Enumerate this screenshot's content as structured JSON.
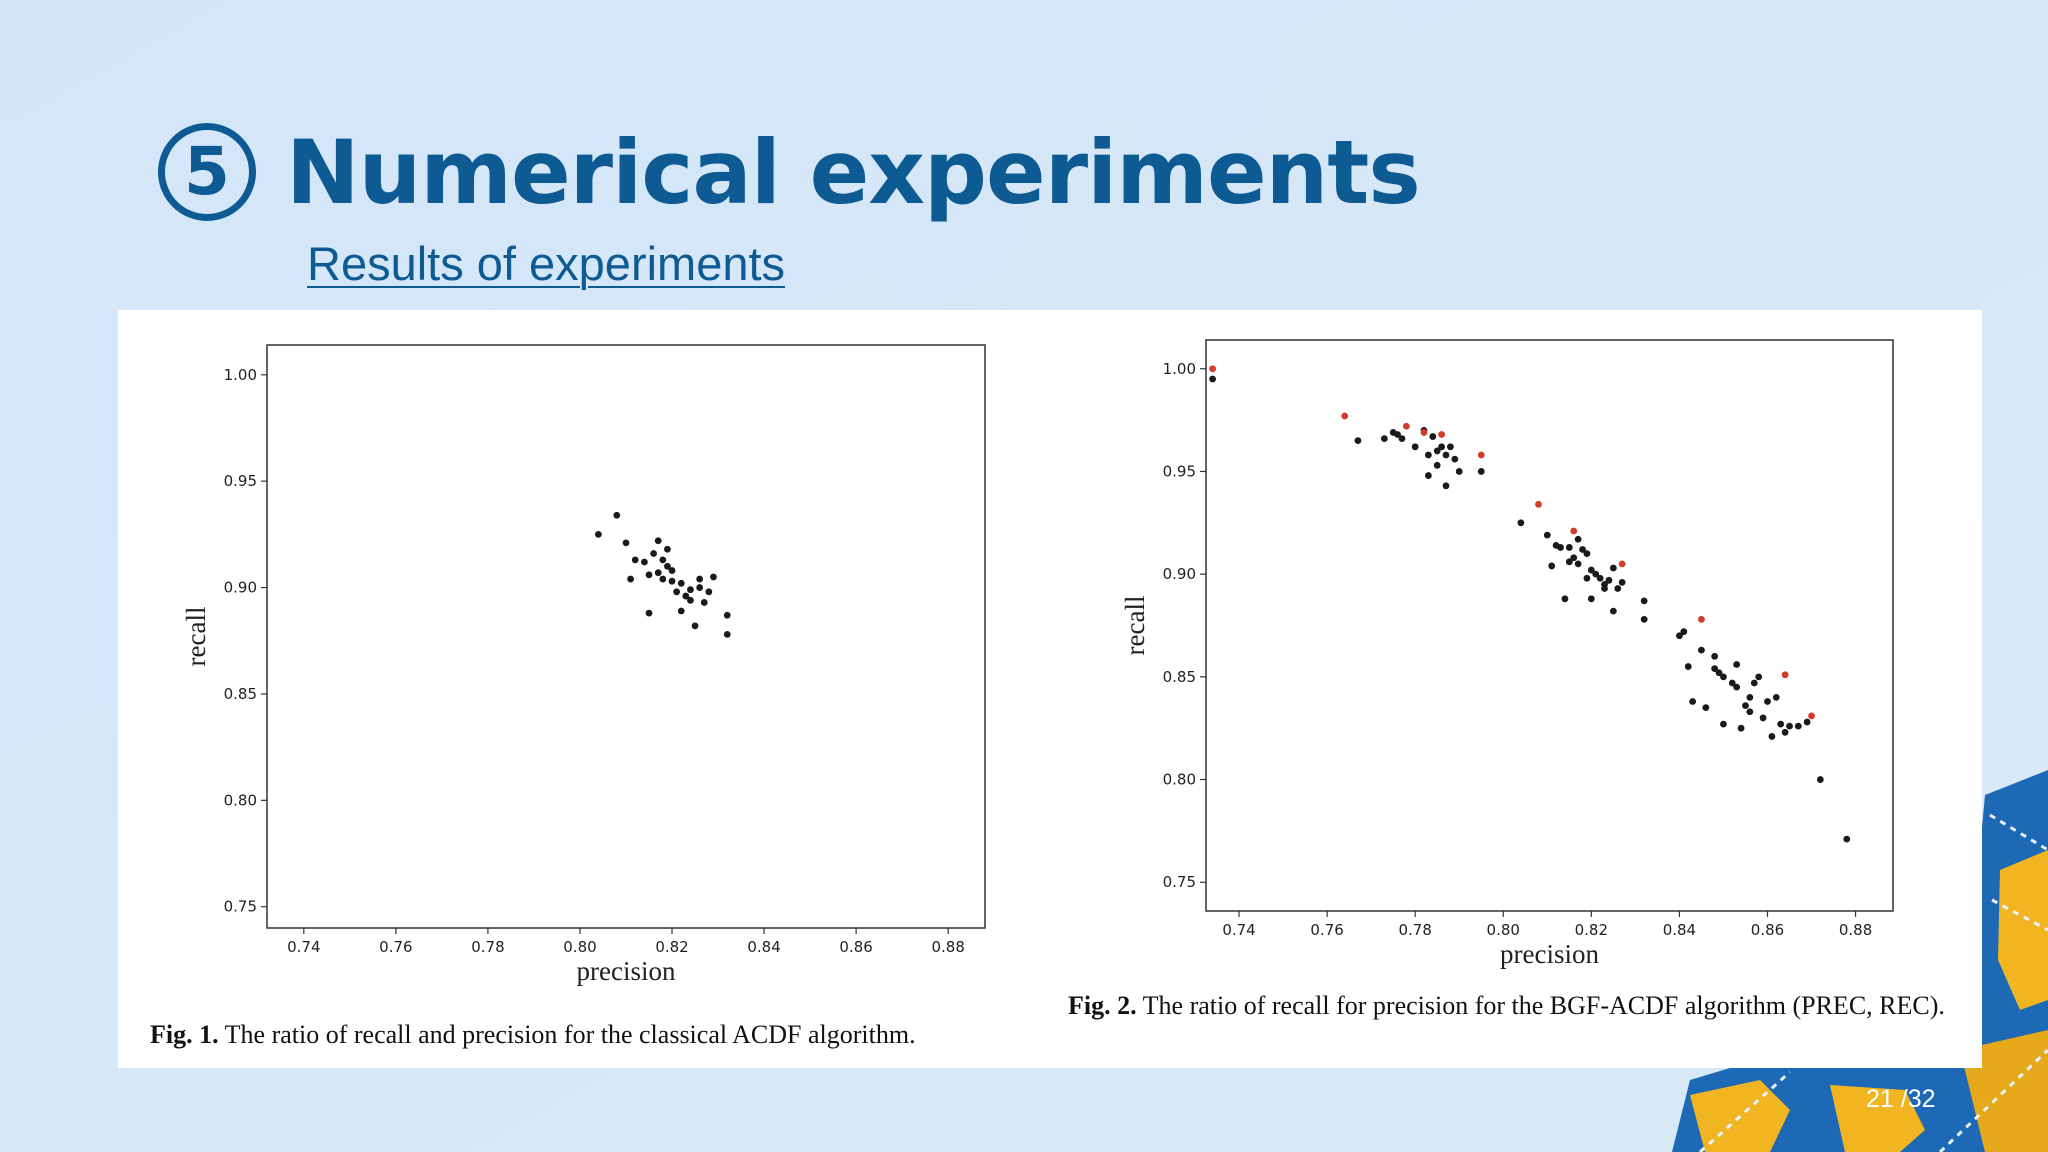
{
  "slide": {
    "section_number": "5",
    "title": "Numerical experiments",
    "subtitle": "Results of experiments",
    "page_number": "21 /32"
  },
  "colors": {
    "background": "#d6e8f8",
    "title": "#0e5b94",
    "point_black": "#1a1a1a",
    "point_red": "#d23a2a",
    "map_ocean": "#1d69b5",
    "map_land": "#f0b521"
  },
  "figures": [
    {
      "caption_label": "Fig. 1.",
      "caption_text": "The ratio of recall and precision for the classical ACDF algorithm."
    },
    {
      "caption_label": "Fig. 2.",
      "caption_text": "The ratio of recall for precision for the BGF-ACDF algorithm (PREC, REC)."
    }
  ],
  "chart_data": [
    {
      "type": "scatter",
      "title": "",
      "xlabel": "precision",
      "ylabel": "recall",
      "xlim": [
        0.732,
        0.888
      ],
      "ylim": [
        0.74,
        1.014
      ],
      "xticks": [
        "0.74",
        "0.76",
        "0.78",
        "0.80",
        "0.82",
        "0.84",
        "0.86",
        "0.88"
      ],
      "yticks": [
        "0.75",
        "0.80",
        "0.85",
        "0.90",
        "0.95",
        "1.00"
      ],
      "grid": false,
      "series": [
        {
          "color": "black",
          "points": [
            [
              0.804,
              0.925
            ],
            [
              0.808,
              0.934
            ],
            [
              0.81,
              0.921
            ],
            [
              0.811,
              0.904
            ],
            [
              0.812,
              0.913
            ],
            [
              0.814,
              0.912
            ],
            [
              0.815,
              0.906
            ],
            [
              0.815,
              0.888
            ],
            [
              0.816,
              0.916
            ],
            [
              0.817,
              0.922
            ],
            [
              0.817,
              0.907
            ],
            [
              0.818,
              0.913
            ],
            [
              0.818,
              0.904
            ],
            [
              0.819,
              0.91
            ],
            [
              0.819,
              0.918
            ],
            [
              0.82,
              0.908
            ],
            [
              0.82,
              0.903
            ],
            [
              0.821,
              0.898
            ],
            [
              0.822,
              0.889
            ],
            [
              0.822,
              0.902
            ],
            [
              0.823,
              0.896
            ],
            [
              0.824,
              0.899
            ],
            [
              0.824,
              0.894
            ],
            [
              0.825,
              0.882
            ],
            [
              0.826,
              0.9
            ],
            [
              0.827,
              0.893
            ],
            [
              0.826,
              0.904
            ],
            [
              0.828,
              0.898
            ],
            [
              0.829,
              0.905
            ],
            [
              0.832,
              0.887
            ],
            [
              0.832,
              0.878
            ]
          ]
        }
      ]
    },
    {
      "type": "scatter",
      "title": "",
      "xlabel": "precision",
      "ylabel": "recall",
      "xlim": [
        0.7325,
        0.8885
      ],
      "ylim": [
        0.736,
        1.014
      ],
      "xticks": [
        "0.74",
        "0.76",
        "0.78",
        "0.80",
        "0.82",
        "0.84",
        "0.86",
        "0.88"
      ],
      "yticks": [
        "0.75",
        "0.80",
        "0.85",
        "0.90",
        "0.95",
        "1.00"
      ],
      "grid": false,
      "series": [
        {
          "color": "black",
          "points": [
            [
              0.734,
              0.995
            ],
            [
              0.767,
              0.965
            ],
            [
              0.773,
              0.966
            ],
            [
              0.775,
              0.969
            ],
            [
              0.776,
              0.968
            ],
            [
              0.777,
              0.966
            ],
            [
              0.78,
              0.962
            ],
            [
              0.782,
              0.97
            ],
            [
              0.783,
              0.958
            ],
            [
              0.784,
              0.967
            ],
            [
              0.783,
              0.948
            ],
            [
              0.785,
              0.96
            ],
            [
              0.785,
              0.953
            ],
            [
              0.786,
              0.962
            ],
            [
              0.787,
              0.958
            ],
            [
              0.787,
              0.943
            ],
            [
              0.788,
              0.962
            ],
            [
              0.789,
              0.956
            ],
            [
              0.79,
              0.95
            ],
            [
              0.795,
              0.95
            ],
            [
              0.804,
              0.925
            ],
            [
              0.81,
              0.919
            ],
            [
              0.811,
              0.904
            ],
            [
              0.812,
              0.914
            ],
            [
              0.813,
              0.913
            ],
            [
              0.814,
              0.888
            ],
            [
              0.815,
              0.906
            ],
            [
              0.815,
              0.913
            ],
            [
              0.816,
              0.908
            ],
            [
              0.817,
              0.917
            ],
            [
              0.817,
              0.905
            ],
            [
              0.818,
              0.912
            ],
            [
              0.819,
              0.898
            ],
            [
              0.819,
              0.91
            ],
            [
              0.82,
              0.902
            ],
            [
              0.82,
              0.888
            ],
            [
              0.821,
              0.9
            ],
            [
              0.822,
              0.898
            ],
            [
              0.823,
              0.895
            ],
            [
              0.823,
              0.893
            ],
            [
              0.824,
              0.897
            ],
            [
              0.825,
              0.882
            ],
            [
              0.825,
              0.903
            ],
            [
              0.826,
              0.893
            ],
            [
              0.827,
              0.896
            ],
            [
              0.832,
              0.887
            ],
            [
              0.832,
              0.878
            ],
            [
              0.84,
              0.87
            ],
            [
              0.841,
              0.872
            ],
            [
              0.842,
              0.855
            ],
            [
              0.843,
              0.838
            ],
            [
              0.845,
              0.863
            ],
            [
              0.846,
              0.835
            ],
            [
              0.848,
              0.86
            ],
            [
              0.848,
              0.854
            ],
            [
              0.849,
              0.852
            ],
            [
              0.85,
              0.827
            ],
            [
              0.85,
              0.85
            ],
            [
              0.852,
              0.847
            ],
            [
              0.853,
              0.845
            ],
            [
              0.853,
              0.856
            ],
            [
              0.854,
              0.825
            ],
            [
              0.855,
              0.836
            ],
            [
              0.856,
              0.833
            ],
            [
              0.856,
              0.84
            ],
            [
              0.857,
              0.847
            ],
            [
              0.858,
              0.85
            ],
            [
              0.859,
              0.83
            ],
            [
              0.86,
              0.838
            ],
            [
              0.861,
              0.821
            ],
            [
              0.862,
              0.84
            ],
            [
              0.863,
              0.827
            ],
            [
              0.864,
              0.823
            ],
            [
              0.865,
              0.826
            ],
            [
              0.867,
              0.826
            ],
            [
              0.869,
              0.828
            ],
            [
              0.872,
              0.8
            ],
            [
              0.878,
              0.771
            ]
          ]
        },
        {
          "color": "red",
          "points": [
            [
              0.734,
              1.0
            ],
            [
              0.764,
              0.977
            ],
            [
              0.778,
              0.972
            ],
            [
              0.782,
              0.969
            ],
            [
              0.786,
              0.968
            ],
            [
              0.795,
              0.958
            ],
            [
              0.808,
              0.934
            ],
            [
              0.816,
              0.921
            ],
            [
              0.827,
              0.905
            ],
            [
              0.845,
              0.878
            ],
            [
              0.864,
              0.851
            ],
            [
              0.87,
              0.831
            ]
          ]
        }
      ]
    }
  ]
}
